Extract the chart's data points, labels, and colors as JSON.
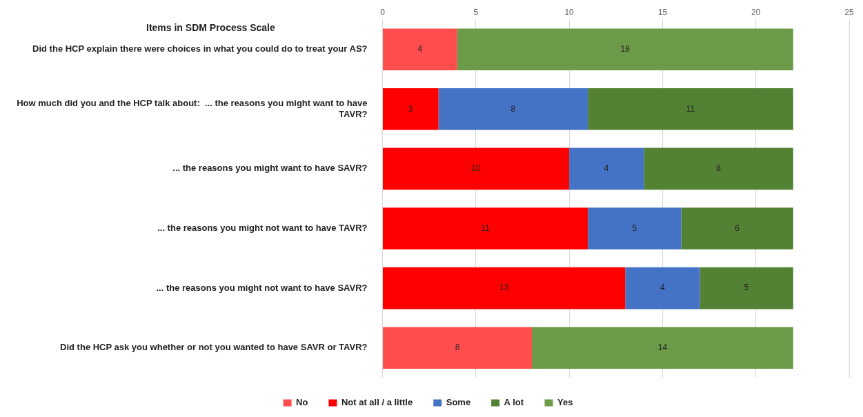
{
  "chart_data": {
    "type": "bar",
    "orientation": "horizontal",
    "stacked": true,
    "title": "Items in SDM Process Scale",
    "categories": [
      "Did the HCP explain there were choices in what you could do to treat your AS?",
      "How much did you and the HCP talk about:  ... the reasons you might want to have TAVR?",
      "... the reasons you might want to have SAVR?",
      "... the reasons you might not want to have TAVR?",
      "... the reasons you might not want to have SAVR?",
      "Did the HCP ask you whether or not you wanted to have SAVR or TAVR?"
    ],
    "series": [
      {
        "name": "No",
        "color": "#ff4d4d",
        "values": [
          4,
          null,
          null,
          null,
          null,
          8
        ]
      },
      {
        "name": "Not at all / a little",
        "color": "#ff0000",
        "values": [
          null,
          3,
          10,
          11,
          13,
          null
        ]
      },
      {
        "name": "Some",
        "color": "#4472c4",
        "values": [
          null,
          8,
          4,
          5,
          4,
          null
        ]
      },
      {
        "name": "A lot",
        "color": "#548235",
        "values": [
          null,
          11,
          8,
          6,
          5,
          null
        ]
      },
      {
        "name": "Yes",
        "color": "#6b9a48",
        "values": [
          18,
          null,
          null,
          null,
          null,
          14
        ]
      }
    ],
    "xlim": [
      0,
      25
    ],
    "xticks": [
      0,
      5,
      10,
      15,
      20,
      25
    ],
    "grid": "x",
    "legend": "bottom",
    "data_labels": true
  }
}
